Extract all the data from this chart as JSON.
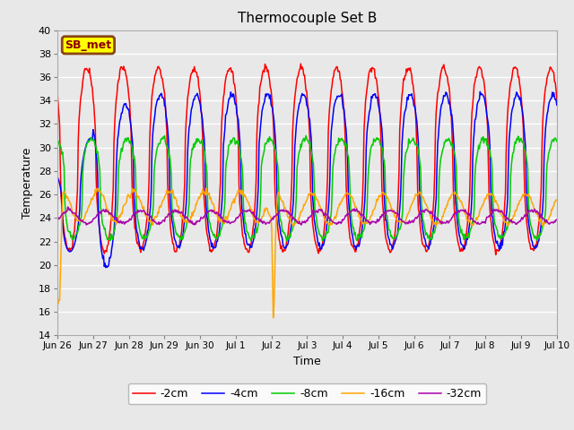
{
  "title": "Thermocouple Set B",
  "xlabel": "Time",
  "ylabel": "Temperature",
  "ylim": [
    14,
    40
  ],
  "yticks": [
    14,
    16,
    18,
    20,
    22,
    24,
    26,
    28,
    30,
    32,
    34,
    36,
    38,
    40
  ],
  "xtick_labels": [
    "Jun 26",
    "Jun 27",
    "Jun 28",
    "Jun 29",
    "Jun 30",
    "Jul 1",
    "Jul 2",
    "Jul 3",
    "Jul 4",
    "Jul 5",
    "Jul 6",
    "Jul 7",
    "Jul 8",
    "Jul 9",
    "Jul 10"
  ],
  "annotation_text": "SB_met",
  "annotation_bg": "#FFFF00",
  "annotation_border": "#8B4513",
  "annotation_text_color": "#8B0000",
  "bg_color": "#E8E8E8",
  "grid_color": "#FFFFFF",
  "series": [
    {
      "label": "-2cm",
      "color": "#FF0000"
    },
    {
      "label": "-4cm",
      "color": "#0000FF"
    },
    {
      "label": "-8cm",
      "color": "#00CC00"
    },
    {
      "label": "-16cm",
      "color": "#FFA500"
    },
    {
      "label": "-32cm",
      "color": "#AA00AA"
    }
  ],
  "n_days": 14,
  "pts_per_day": 48
}
